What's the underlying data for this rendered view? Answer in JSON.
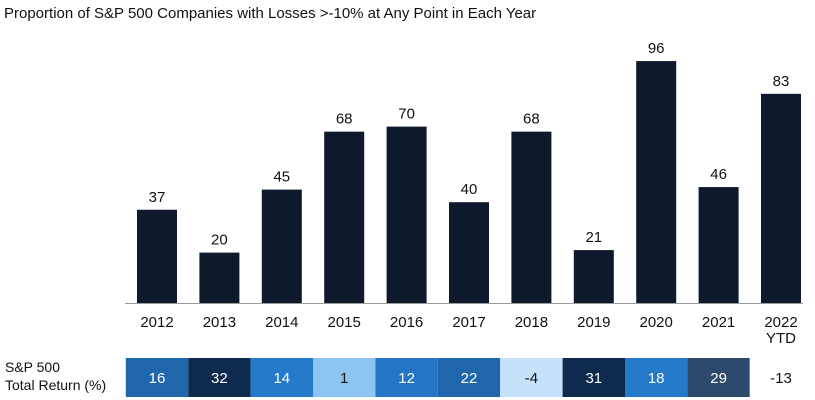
{
  "chart_data": {
    "type": "bar",
    "title": "Proportion of S&P 500 Companies with Losses >-10% at Any Point in Each Year",
    "categories": [
      "2012",
      "2013",
      "2014",
      "2015",
      "2016",
      "2017",
      "2018",
      "2019",
      "2020",
      "2021",
      "2022\nYTD"
    ],
    "values": [
      37,
      20,
      45,
      68,
      70,
      40,
      68,
      21,
      96,
      46,
      83
    ],
    "ylim": [
      0,
      100
    ],
    "grid": false,
    "bar_color": "#0e1a2b",
    "table": {
      "label_line1": "S&P 500",
      "label_line2": "Total Return (%)",
      "values": [
        "16",
        "32",
        "14",
        "1",
        "12",
        "22",
        "-4",
        "31",
        "18",
        "29",
        "-13"
      ],
      "colors": [
        "#1f66ad",
        "#0e2a4f",
        "#2579c9",
        "#8ec4f2",
        "#2376c4",
        "#1f66ad",
        "#c6e2fb",
        "#0e2a4f",
        "#2579c9",
        "#2c4a6b",
        "#ffffff"
      ]
    }
  }
}
